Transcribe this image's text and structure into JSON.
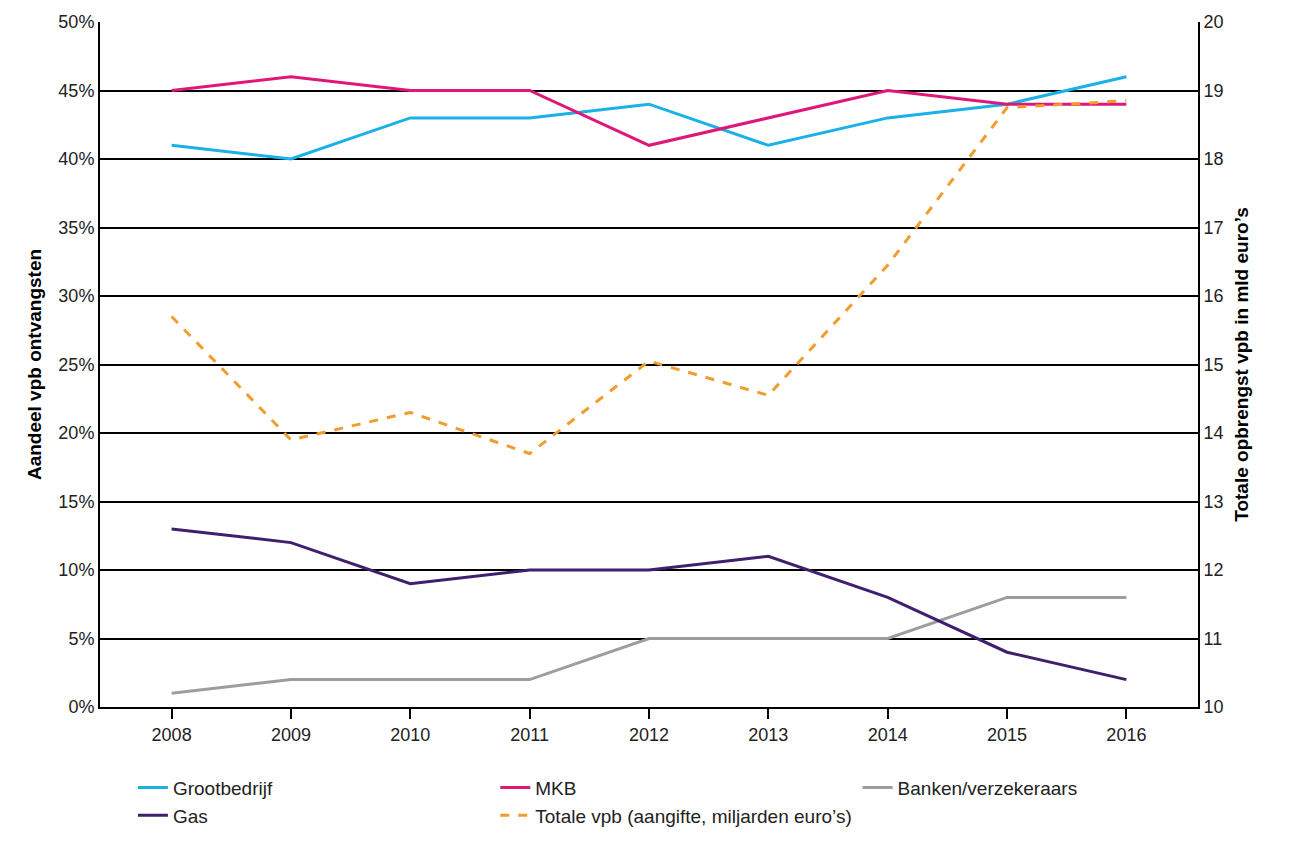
{
  "chart_data": {
    "type": "line",
    "x": [
      2008,
      2009,
      2010,
      2011,
      2012,
      2013,
      2014,
      2015,
      2016
    ],
    "xlim": [
      2007.4,
      2016.6
    ],
    "xticks": [
      2008,
      2009,
      2010,
      2011,
      2012,
      2013,
      2014,
      2015,
      2016
    ],
    "y_label": "Aandeel vpb ontvangsten",
    "ylim": [
      0,
      50
    ],
    "yticks": [
      {
        "value": 0,
        "label": "0%"
      },
      {
        "value": 5,
        "label": "5%"
      },
      {
        "value": 10,
        "label": "10%"
      },
      {
        "value": 15,
        "label": "15%"
      },
      {
        "value": 20,
        "label": "20%"
      },
      {
        "value": 25,
        "label": "25%"
      },
      {
        "value": 30,
        "label": "30%"
      },
      {
        "value": 35,
        "label": "35%"
      },
      {
        "value": 40,
        "label": "40%"
      },
      {
        "value": 45,
        "label": "45%"
      },
      {
        "value": 50,
        "label": "50%"
      }
    ],
    "y2_label": "Totale opbrengst vpb in mld euro’s",
    "y2lim": [
      10,
      20
    ],
    "y2ticks": [
      10,
      11,
      12,
      13,
      14,
      15,
      16,
      17,
      18,
      19,
      20
    ],
    "grid": true,
    "legend": "bottom",
    "series": [
      {
        "name": "Grootbedrijf",
        "color": "#1ab0e8",
        "line_style": "solid",
        "values": [
          41,
          40,
          43,
          43,
          44,
          41,
          43,
          44,
          46
        ]
      },
      {
        "name": "MKB",
        "color": "#e0177a",
        "line_style": "solid",
        "values": [
          45,
          46,
          45,
          45,
          41,
          43,
          45,
          44,
          44
        ]
      },
      {
        "name": "Banken/verzekeraars",
        "color": "#9d9d9d",
        "line_style": "solid",
        "values": [
          1,
          2,
          2,
          2,
          5,
          5,
          5,
          8,
          8
        ]
      },
      {
        "name": "Gas",
        "color": "#3f1f6e",
        "line_style": "solid",
        "values": [
          13,
          12,
          9,
          10,
          10,
          11,
          8,
          4,
          2
        ]
      },
      {
        "name": "Totale vpb (aangifte, miljarden euro’s)",
        "color": "#f39c2e",
        "line_style": "dash",
        "axis": "y2",
        "values": [
          15.7,
          13.9,
          14.3,
          13.7,
          15.05,
          14.55,
          16.45,
          18.75,
          18.85
        ]
      }
    ]
  }
}
